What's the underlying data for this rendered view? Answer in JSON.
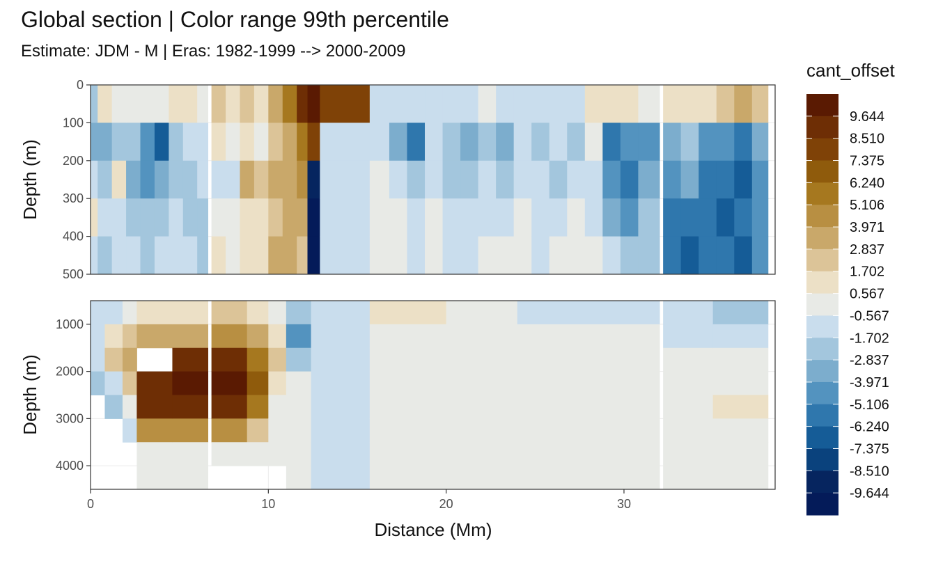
{
  "chart_data": {
    "type": "heatmap",
    "title": "Global section | Color range 99th percentile",
    "subtitle": "Estimate: JDM - M | Eras: 1982-1999 --> 2000-2009",
    "xlabel": "Distance (Mm)",
    "ylabel": "Depth (m)",
    "xlim": [
      0,
      38.5
    ],
    "x_ticks": [
      0,
      10,
      20,
      30
    ],
    "grid": true,
    "legend": {
      "title": "cant_offset",
      "position": "right",
      "labels": [
        "9.644",
        "8.510",
        "7.375",
        "6.240",
        "5.106",
        "3.971",
        "2.837",
        "1.702",
        "0.567",
        "-0.567",
        "-1.702",
        "-2.837",
        "-3.971",
        "-5.106",
        "-6.240",
        "-7.375",
        "-8.510",
        "-9.644"
      ],
      "colors": [
        "#5a1a02",
        "#6e2e05",
        "#7f4207",
        "#8f5b0c",
        "#a6781f",
        "#b88f42",
        "#c9a86a",
        "#dcc498",
        "#ece0c6",
        "#e8eae6",
        "#c9dded",
        "#a3c6dd",
        "#7cadcd",
        "#5393bf",
        "#2f77ad",
        "#155c97",
        "#0a427d",
        "#06255f",
        "#041b59"
      ]
    },
    "panels": [
      {
        "name": "upper",
        "ylim": [
          500,
          0
        ],
        "y_ticks": [
          0,
          100,
          200,
          300,
          400,
          500
        ],
        "columns": [
          {
            "x0": 0.0,
            "x1": 0.4,
            "v": [
              -2,
              -3,
              -1,
              1,
              -1
            ]
          },
          {
            "x0": 0.4,
            "x1": 1.2,
            "v": [
              1,
              -3,
              -2,
              -1,
              -2
            ]
          },
          {
            "x0": 1.2,
            "x1": 2.0,
            "v": [
              0,
              -2,
              1,
              -1,
              -1
            ]
          },
          {
            "x0": 2.0,
            "x1": 2.8,
            "v": [
              0,
              -2,
              -3,
              -2,
              -1
            ]
          },
          {
            "x0": 2.8,
            "x1": 3.6,
            "v": [
              0,
              -4,
              -4,
              -2,
              -2
            ]
          },
          {
            "x0": 3.6,
            "x1": 4.4,
            "v": [
              0,
              -6,
              -3,
              -2,
              -1
            ]
          },
          {
            "x0": 4.4,
            "x1": 5.2,
            "v": [
              1,
              -2,
              -2,
              -1,
              -1
            ]
          },
          {
            "x0": 5.2,
            "x1": 6.0,
            "v": [
              1,
              -1,
              -2,
              -2,
              -1
            ]
          },
          {
            "x0": 6.0,
            "x1": 6.6,
            "v": [
              0,
              -1,
              -1,
              -2,
              -2
            ]
          },
          {
            "x0": 6.8,
            "x1": 7.6,
            "v": [
              2,
              1,
              -1,
              0,
              1
            ]
          },
          {
            "x0": 7.6,
            "x1": 8.4,
            "v": [
              1,
              0,
              -1,
              0,
              0
            ]
          },
          {
            "x0": 8.4,
            "x1": 9.2,
            "v": [
              2,
              1,
              3,
              1,
              1
            ]
          },
          {
            "x0": 9.2,
            "x1": 10.0,
            "v": [
              1,
              0,
              2,
              1,
              1
            ]
          },
          {
            "x0": 10.0,
            "x1": 10.8,
            "v": [
              3,
              2,
              3,
              2,
              3
            ]
          },
          {
            "x0": 10.8,
            "x1": 11.6,
            "v": [
              5,
              3,
              3,
              3,
              3
            ]
          },
          {
            "x0": 11.6,
            "x1": 12.2,
            "v": [
              8,
              5,
              4,
              3,
              2
            ]
          },
          {
            "x0": 12.2,
            "x1": 12.9,
            "v": [
              9,
              7,
              -8,
              -9,
              -9
            ]
          },
          {
            "x0": 12.9,
            "x1": 15.7,
            "v": [
              7,
              -1,
              -1,
              -1,
              -1
            ]
          },
          {
            "x0": 15.7,
            "x1": 16.8,
            "v": [
              -1,
              -1,
              0,
              0,
              0
            ]
          },
          {
            "x0": 16.8,
            "x1": 17.8,
            "v": [
              -1,
              -3,
              -1,
              0,
              0
            ]
          },
          {
            "x0": 17.8,
            "x1": 18.8,
            "v": [
              -1,
              -5,
              -2,
              -1,
              -1
            ]
          },
          {
            "x0": 18.8,
            "x1": 19.8,
            "v": [
              -1,
              -1,
              -1,
              0,
              0
            ]
          },
          {
            "x0": 19.8,
            "x1": 20.8,
            "v": [
              -1,
              -2,
              -2,
              -1,
              -1
            ]
          },
          {
            "x0": 20.8,
            "x1": 21.8,
            "v": [
              -1,
              -3,
              -2,
              -1,
              -1
            ]
          },
          {
            "x0": 21.8,
            "x1": 22.8,
            "v": [
              0,
              -2,
              -1,
              -1,
              0
            ]
          },
          {
            "x0": 22.8,
            "x1": 23.8,
            "v": [
              -1,
              -3,
              -2,
              -1,
              0
            ]
          },
          {
            "x0": 23.8,
            "x1": 24.8,
            "v": [
              -1,
              -1,
              -1,
              0,
              0
            ]
          },
          {
            "x0": 24.8,
            "x1": 25.8,
            "v": [
              -1,
              -2,
              -1,
              -1,
              -1
            ]
          },
          {
            "x0": 25.8,
            "x1": 26.8,
            "v": [
              -1,
              -1,
              -2,
              -1,
              0
            ]
          },
          {
            "x0": 26.8,
            "x1": 27.8,
            "v": [
              -1,
              -2,
              -1,
              0,
              0
            ]
          },
          {
            "x0": 27.8,
            "x1": 28.8,
            "v": [
              1,
              0,
              -1,
              -1,
              0
            ]
          },
          {
            "x0": 28.8,
            "x1": 29.8,
            "v": [
              1,
              -5,
              -4,
              -3,
              -1
            ]
          },
          {
            "x0": 29.8,
            "x1": 30.8,
            "v": [
              1,
              -4,
              -5,
              -4,
              -2
            ]
          },
          {
            "x0": 30.8,
            "x1": 32.0,
            "v": [
              0,
              -4,
              -3,
              -2,
              -2
            ]
          },
          {
            "x0": 32.2,
            "x1": 33.2,
            "v": [
              1,
              -3,
              -4,
              -5,
              -5
            ]
          },
          {
            "x0": 33.2,
            "x1": 34.2,
            "v": [
              1,
              -2,
              -3,
              -5,
              -6
            ]
          },
          {
            "x0": 34.2,
            "x1": 35.2,
            "v": [
              1,
              -4,
              -5,
              -5,
              -5
            ]
          },
          {
            "x0": 35.2,
            "x1": 36.2,
            "v": [
              2,
              -4,
              -5,
              -6,
              -5
            ]
          },
          {
            "x0": 36.2,
            "x1": 37.2,
            "v": [
              3,
              -5,
              -6,
              -5,
              -6
            ]
          },
          {
            "x0": 37.2,
            "x1": 38.1,
            "v": [
              2,
              -3,
              -4,
              -4,
              -4
            ]
          }
        ]
      },
      {
        "name": "lower",
        "ylim": [
          4500,
          500
        ],
        "y_ticks": [
          1000,
          2000,
          3000,
          4000
        ],
        "columns": [
          {
            "x0": 0.0,
            "x1": 0.8,
            "v": [
              -1,
              -1,
              -1,
              -2,
              null,
              null,
              null,
              null
            ]
          },
          {
            "x0": 0.8,
            "x1": 1.8,
            "v": [
              -1,
              1,
              2,
              -1,
              -2,
              null,
              null,
              null
            ]
          },
          {
            "x0": 1.8,
            "x1": 2.6,
            "v": [
              0,
              2,
              3,
              2,
              0,
              -1,
              null,
              null
            ]
          },
          {
            "x0": 2.6,
            "x1": 4.6,
            "v": [
              1,
              3,
              null,
              8,
              8,
              4,
              0,
              0
            ]
          },
          {
            "x0": 4.6,
            "x1": 6.6,
            "v": [
              1,
              3,
              8,
              9,
              8,
              4,
              0,
              0
            ]
          },
          {
            "x0": 6.8,
            "x1": 8.8,
            "v": [
              2,
              4,
              8,
              9,
              8,
              4,
              0,
              null
            ]
          },
          {
            "x0": 8.8,
            "x1": 10.0,
            "v": [
              1,
              3,
              5,
              6,
              5,
              2,
              0,
              null
            ]
          },
          {
            "x0": 10.0,
            "x1": 11.0,
            "v": [
              0,
              1,
              2,
              1,
              0,
              0,
              0,
              null
            ]
          },
          {
            "x0": 11.0,
            "x1": 12.4,
            "v": [
              -2,
              -4,
              -2,
              0,
              0,
              0,
              0,
              0
            ]
          },
          {
            "x0": 12.4,
            "x1": 15.7,
            "v": [
              -1,
              -1,
              -1,
              -1,
              -1,
              -1,
              -1,
              -1
            ]
          },
          {
            "x0": 15.7,
            "x1": 20.0,
            "v": [
              1,
              0,
              0,
              0,
              0,
              0,
              0,
              0
            ]
          },
          {
            "x0": 20.0,
            "x1": 24.0,
            "v": [
              0,
              0,
              0,
              0,
              0,
              0,
              0,
              0
            ]
          },
          {
            "x0": 24.0,
            "x1": 28.0,
            "v": [
              -1,
              0,
              0,
              0,
              0,
              0,
              0,
              0
            ]
          },
          {
            "x0": 28.0,
            "x1": 32.0,
            "v": [
              -1,
              0,
              0,
              0,
              0,
              0,
              0,
              0
            ]
          },
          {
            "x0": 32.2,
            "x1": 35.0,
            "v": [
              -1,
              -1,
              0,
              0,
              0,
              0,
              0,
              0
            ]
          },
          {
            "x0": 35.0,
            "x1": 38.1,
            "v": [
              -2,
              -1,
              0,
              0,
              1,
              0,
              0,
              0
            ]
          }
        ]
      }
    ]
  }
}
